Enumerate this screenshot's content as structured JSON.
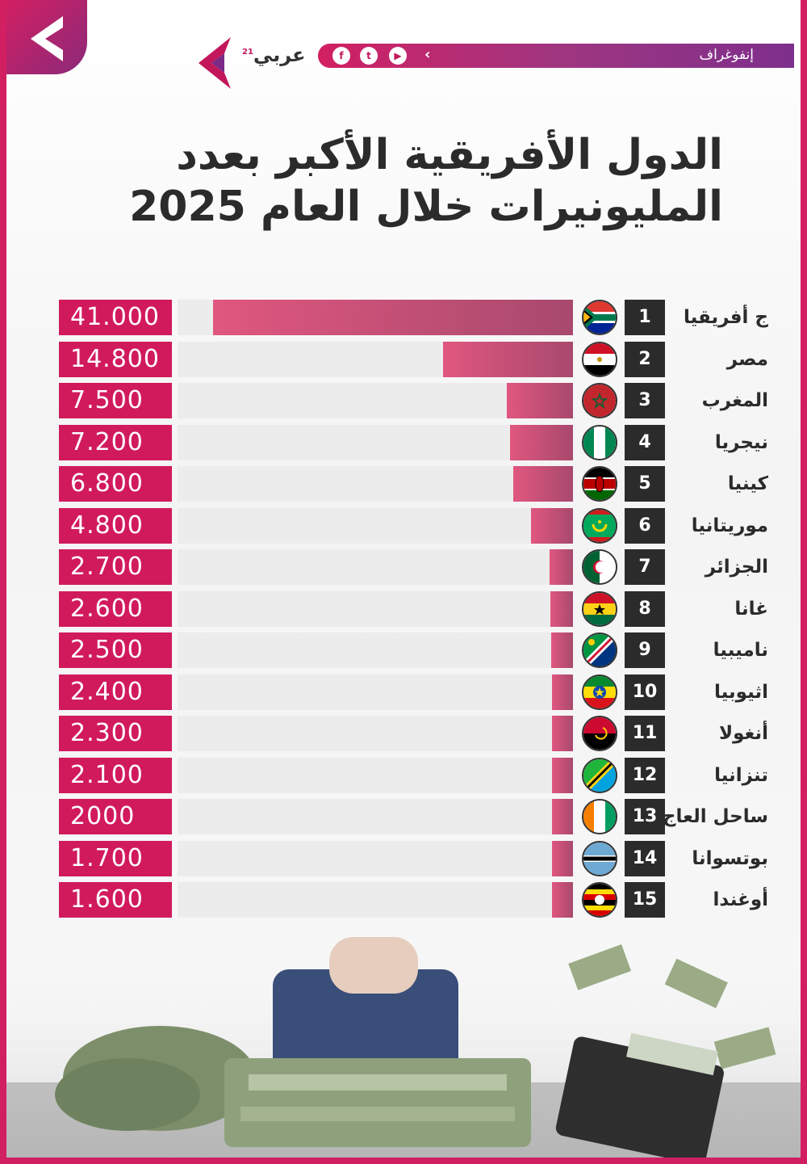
{
  "header": {
    "brand_name": "عربي",
    "brand_sup": "21",
    "section_label": "إنفوغراف",
    "social_icons": [
      "facebook-icon",
      "twitter-icon",
      "youtube-icon"
    ]
  },
  "title_lines": [
    "الدول الأفريقية الأكبر بعدد",
    "المليونيرات خلال العام 2025"
  ],
  "colors": {
    "accent": "#d11a5c",
    "bar": "#c04b74",
    "rank_bg": "#2b2b2b",
    "track": "#ececec"
  },
  "chart_data": {
    "type": "bar",
    "orientation": "horizontal",
    "title": "الدول الأفريقية الأكبر بعدد المليونيرات خلال العام 2025",
    "categories": [
      "ج أفريقيا",
      "مصر",
      "المغرب",
      "نيجريا",
      "كينيا",
      "موريتانيا",
      "الجزائر",
      "غانا",
      "ناميبيا",
      "اثيوبيا",
      "أنغولا",
      "تنزانيا",
      "ساحل العاج",
      "بوتسوانا",
      "أوغندا"
    ],
    "values": [
      41000,
      14800,
      7500,
      7200,
      6800,
      4800,
      2700,
      2600,
      2500,
      2400,
      2300,
      2100,
      2000,
      1700,
      1600
    ],
    "value_labels": [
      "41.000",
      "14.800",
      "7.500",
      "7.200",
      "6.800",
      "4.800",
      "2.700",
      "2.600",
      "2.500",
      "2.400",
      "2.300",
      "2.100",
      "2000",
      "1.700",
      "1.600"
    ],
    "ranks": [
      "1",
      "2",
      "3",
      "4",
      "5",
      "6",
      "7",
      "8",
      "9",
      "10",
      "11",
      "12",
      "13",
      "14",
      "15"
    ],
    "flags": [
      "south-africa-flag",
      "egypt-flag",
      "morocco-flag",
      "nigeria-flag",
      "kenya-flag",
      "mauritania-flag",
      "algeria-flag",
      "ghana-flag",
      "namibia-flag",
      "ethiopia-flag",
      "angola-flag",
      "tanzania-flag",
      "ivory-coast-flag",
      "botswana-flag",
      "uganda-flag"
    ]
  }
}
